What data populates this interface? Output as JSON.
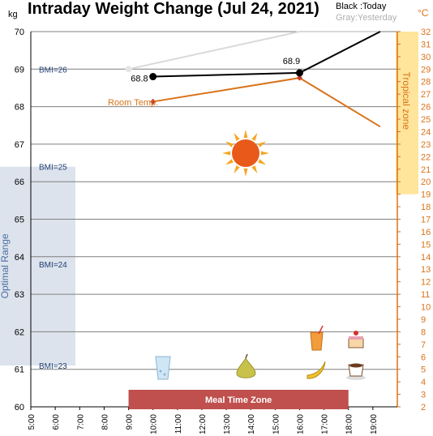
{
  "title": "Intraday Weight Change (Jul 24, 2021)",
  "left_unit": "kg",
  "right_unit": "°C",
  "legend": {
    "today": "Black :Today",
    "yesterday": "Gray:Yesterday"
  },
  "colors": {
    "today": "#000000",
    "yesterday": "#d9d9d9",
    "room_temp": "#d9731a",
    "room_marker": "#c0392b",
    "optimal_band": "#dde3ec",
    "tropical_band": "#ffe08a",
    "meal_bar": "#c0504d",
    "bmi_text": "#1f3f73",
    "grid": "#7f7f7f"
  },
  "icons": {
    "sun": "sun-icon",
    "water": "glass-of-water-icon",
    "pear": "pear-icon",
    "juice": "juice-glass-icon",
    "banana": "banana-icon",
    "cake": "cake-icon",
    "coffee": "coffee-cup-icon"
  },
  "chart_data": {
    "type": "line",
    "title": "Intraday Weight Change (Jul 24, 2021)",
    "x_ticks": [
      "5:00",
      "6:00",
      "7:00",
      "8:00",
      "9:00",
      "10:00",
      "11:00",
      "12:00",
      "13:00",
      "14:00",
      "15:00",
      "16:00",
      "17:00",
      "18:00",
      "19:00"
    ],
    "xlim": [
      5,
      20
    ],
    "ylim": [
      60,
      70
    ],
    "y_ticks": [
      60,
      61,
      62,
      63,
      64,
      65,
      66,
      67,
      68,
      69,
      70
    ],
    "y2lim": [
      2,
      32
    ],
    "y2_ticks": [
      2,
      3,
      4,
      5,
      6,
      7,
      8,
      9,
      10,
      11,
      12,
      13,
      14,
      15,
      16,
      17,
      18,
      19,
      20,
      21,
      22,
      23,
      24,
      25,
      26,
      27,
      28,
      29,
      30,
      31,
      32
    ],
    "grid": true,
    "series": [
      {
        "name": "Today",
        "axis": "left",
        "x": [
          10.0,
          16.0,
          19.3
        ],
        "y": [
          68.8,
          68.9,
          70.0
        ],
        "labels": [
          "68.8",
          "68.9",
          ""
        ]
      },
      {
        "name": "Yesterday",
        "axis": "left",
        "x": [
          9.0,
          16.0,
          19.3
        ],
        "y": [
          69.0,
          70.0,
          70.0
        ]
      },
      {
        "name": "Room Temp.",
        "axis": "right",
        "x": [
          10.0,
          16.0,
          19.3
        ],
        "y": [
          26.4,
          28.3,
          24.4
        ]
      }
    ],
    "bands": {
      "optimal_range": {
        "label": "Optimal Range",
        "y": [
          61.1,
          66.4
        ]
      },
      "tropical_zone": {
        "label": "Tropical zone",
        "y2": [
          19,
          32
        ]
      },
      "meal_time_zone": {
        "label": "Meal Time Zone",
        "x": [
          9.0,
          18.0
        ]
      }
    },
    "bmi_lines": [
      {
        "label": "BMI=26",
        "y": 69.0
      },
      {
        "label": "BMI=25",
        "y": 66.4
      },
      {
        "label": "BMI=24",
        "y": 63.8
      },
      {
        "label": "BMI=23",
        "y": 61.1
      }
    ]
  }
}
